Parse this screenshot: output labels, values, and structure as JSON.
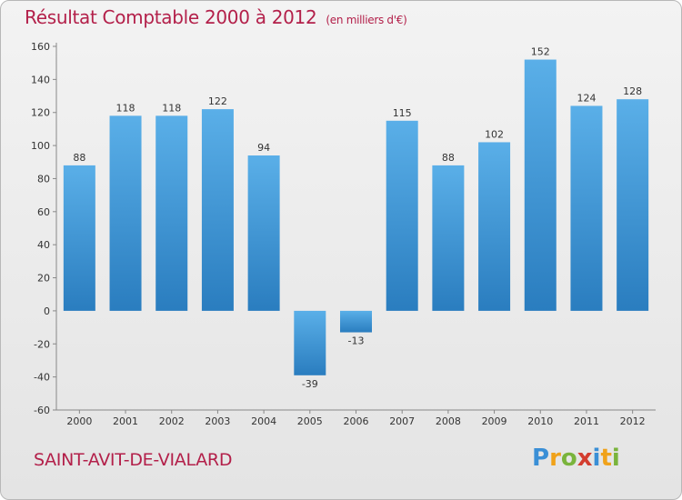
{
  "header": {
    "title": "Résultat Comptable 2000 à 2012",
    "subtitle": "(en milliers d'€)"
  },
  "footer": {
    "commune": "SAINT-AVIT-DE-VIALARD",
    "logo_letters": [
      "P",
      "r",
      "o",
      "x",
      "i",
      "t",
      "i"
    ],
    "logo_colors": [
      "#3a8fd6",
      "#f0a21a",
      "#7ab43c",
      "#d33d2f",
      "#3a8fd6",
      "#f0a21a",
      "#7ab43c"
    ]
  },
  "colors": {
    "bar_light": "#5aafe8",
    "bar_dark": "#2a7dbf",
    "title": "#b3204a"
  },
  "chart_data": {
    "type": "bar",
    "title": "Résultat Comptable 2000 à 2012",
    "categories": [
      "2000",
      "2001",
      "2002",
      "2003",
      "2004",
      "2005",
      "2006",
      "2007",
      "2008",
      "2009",
      "2010",
      "2011",
      "2012"
    ],
    "values": [
      88,
      118,
      118,
      122,
      94,
      -39,
      -13,
      115,
      88,
      102,
      152,
      124,
      128
    ],
    "data_labels": [
      "88",
      "118",
      "118",
      "122",
      "94",
      "-39",
      "-13",
      "115",
      "88",
      "102",
      "152",
      "124",
      "128"
    ],
    "ylim": [
      -60,
      160
    ],
    "yticks": [
      "-60",
      "-40",
      "-20",
      "0",
      "20",
      "40",
      "60",
      "80",
      "100",
      "120",
      "140",
      "160"
    ],
    "grid": false,
    "xlabel": "",
    "ylabel": ""
  }
}
